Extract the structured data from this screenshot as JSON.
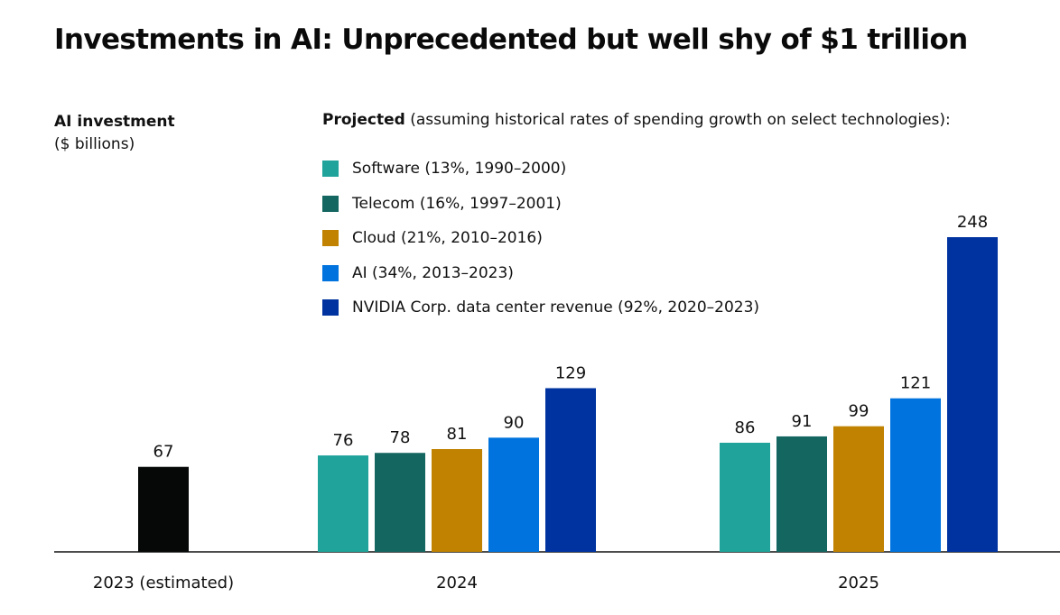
{
  "chart_data": {
    "type": "bar",
    "title": "Investments in AI: Unprecedented but well shy of $1 trillion",
    "ylabel_bold": "AI investment",
    "ylabel_unit": "($ billions)",
    "legend_heading_bold": "Projected",
    "legend_heading_rest": " (assuming historical rates of spending growth on select technologies):",
    "legend_placement": "top-center",
    "grid": false,
    "ylim": [
      0,
      248
    ],
    "categories": [
      "2023 (estimated)",
      "2024",
      "2025"
    ],
    "baseline": {
      "category": "2023 (estimated)",
      "value": 67,
      "color": "#050807"
    },
    "series": [
      {
        "name": "Software (13%, 1990–2000)",
        "color": "#1fa39a",
        "values": [
          null,
          76,
          86
        ]
      },
      {
        "name": "Telecom (16%, 1997–2001)",
        "color": "#146660",
        "values": [
          null,
          78,
          91
        ]
      },
      {
        "name": "Cloud (21%, 2010–2016)",
        "color": "#c08200",
        "values": [
          null,
          81,
          99
        ]
      },
      {
        "name": "AI (34%, 2013–2023)",
        "color": "#0073de",
        "values": [
          null,
          90,
          121
        ]
      },
      {
        "name": "NVIDIA Corp. data center revenue (92%, 2020–2023)",
        "color": "#0033a0",
        "values": [
          null,
          129,
          248
        ]
      }
    ]
  }
}
